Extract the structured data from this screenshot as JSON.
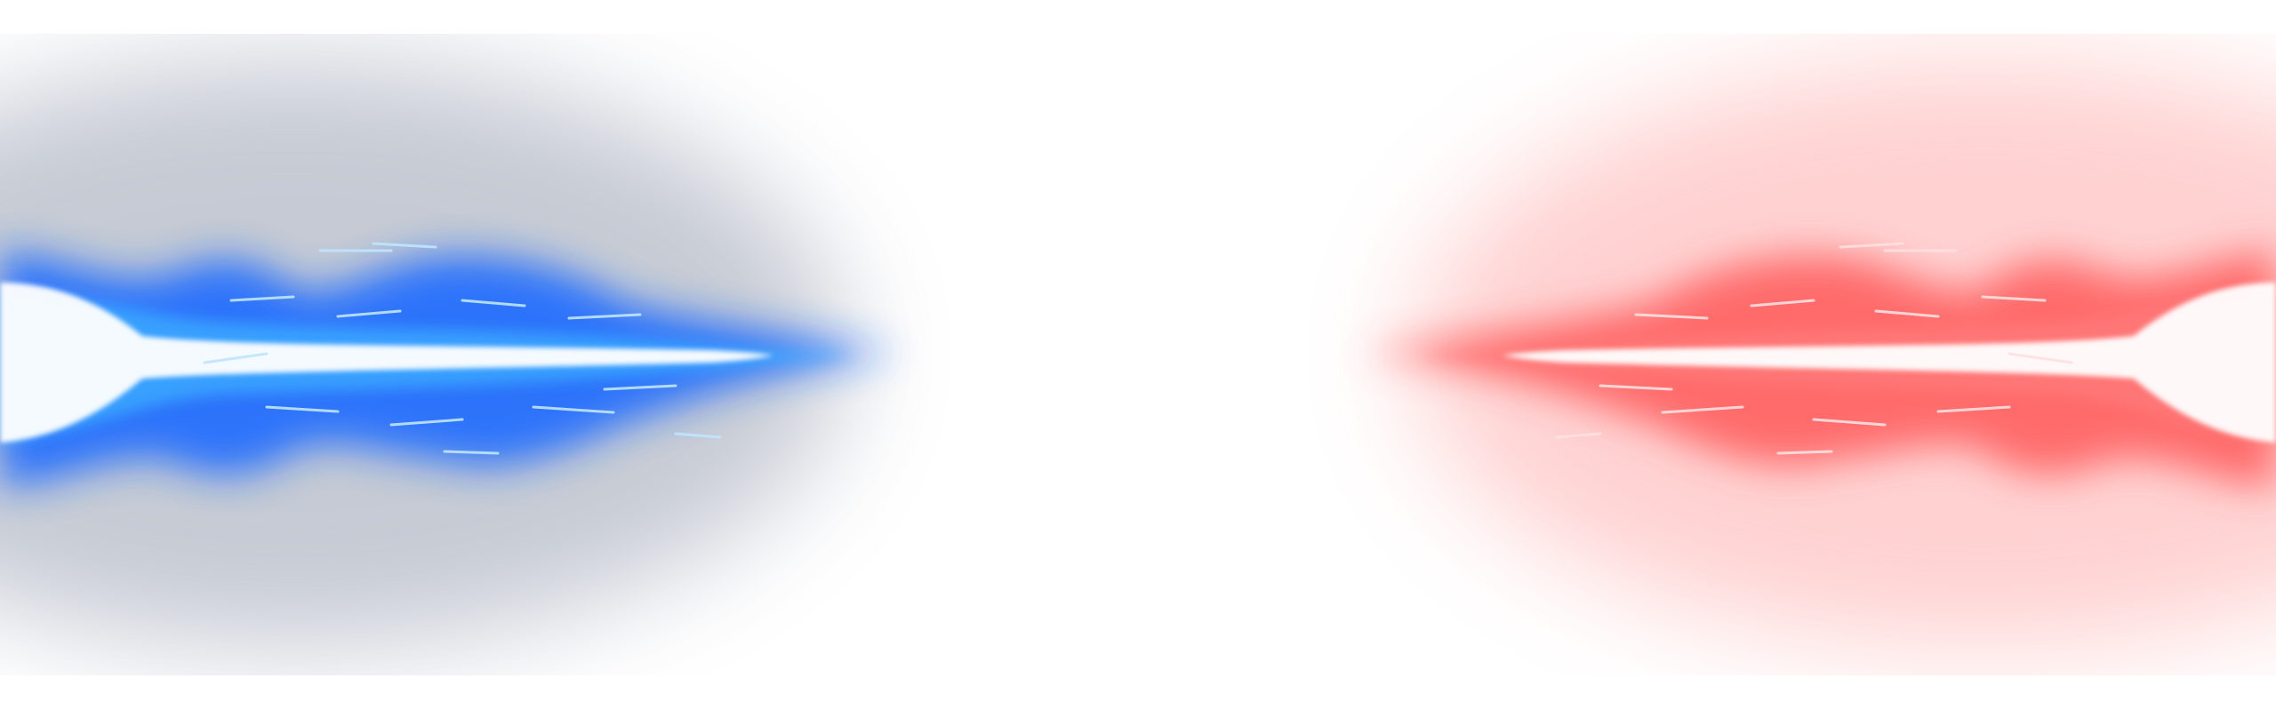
{
  "image": {
    "subject": "energy-beam-clash",
    "background": "#ffffff"
  },
  "beams": [
    {
      "name": "blue-beam",
      "side": "left",
      "core_color": "#ffffff",
      "glow_color": "#1e6bff",
      "haze_color": "#6b7690"
    },
    {
      "name": "red-beam",
      "side": "right",
      "core_color": "#ffffff",
      "glow_color": "#ff4a4a",
      "haze_color": "#ff9a9a"
    }
  ]
}
